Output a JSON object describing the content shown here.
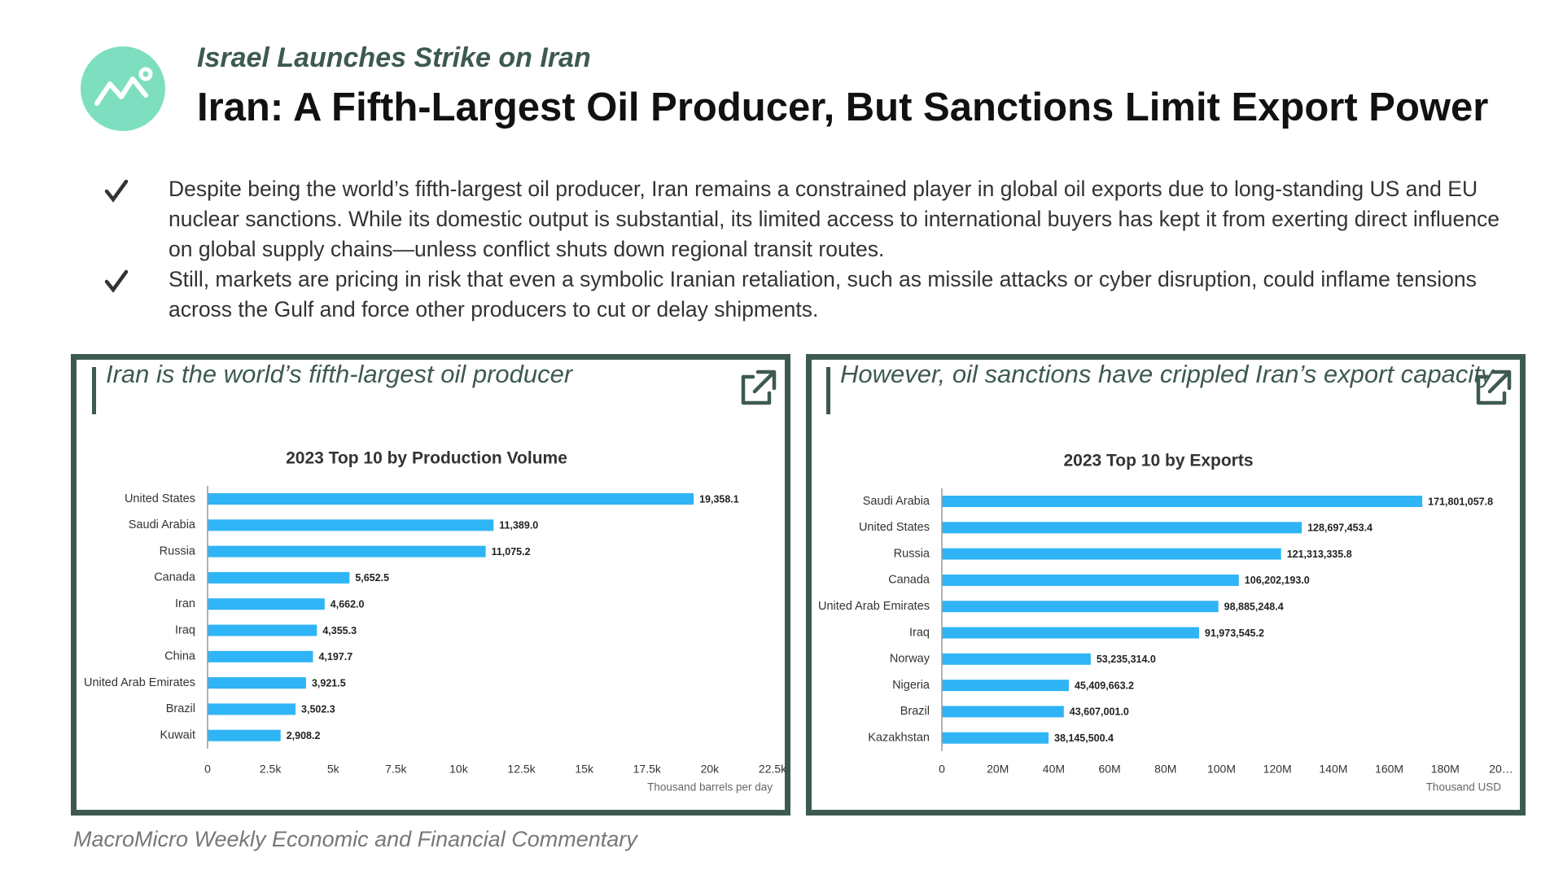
{
  "header": {
    "kicker": "Israel Launches Strike on Iran",
    "title": "Iran: A Fifth-Largest Oil Producer, But Sanctions Limit Export Power"
  },
  "bullets": [
    "Despite being the world’s fifth-largest oil producer, Iran remains a constrained player in global oil exports due to long-standing US and EU nuclear sanctions. While its domestic output is substantial, its limited access to international buyers has kept it from exerting direct influence on global supply chains—unless conflict shuts down regional transit routes.",
    "Still, markets are pricing in risk that even a symbolic Iranian retaliation, such as missile attacks or cyber disruption, could inflame tensions across the Gulf and force other producers to cut or delay shipments."
  ],
  "chart_data": [
    {
      "type": "bar",
      "orientation": "horizontal",
      "caption": "Iran is the world’s fifth-largest oil producer",
      "title": "2023 Top 10 by Production Volume",
      "categories": [
        "United States",
        "Saudi Arabia",
        "Russia",
        "Canada",
        "Iran",
        "Iraq",
        "China",
        "United Arab Emirates",
        "Brazil",
        "Kuwait"
      ],
      "values": [
        19358.1,
        11389.0,
        11075.2,
        5652.5,
        4662.0,
        4355.3,
        4197.7,
        3921.5,
        3502.3,
        2908.2
      ],
      "value_labels": [
        "19,358.1",
        "11,389.0",
        "11,075.2",
        "5,652.5",
        "4,662.0",
        "4,355.3",
        "4,197.7",
        "3,921.5",
        "3,502.3",
        "2,908.2"
      ],
      "color": "#2fb4f6",
      "xlim": [
        0,
        22500
      ],
      "xticks": [
        0,
        {
          "value": 2500,
          "label": "2.5k"
        },
        {
          "value": 5000,
          "label": "5k"
        },
        {
          "value": 7500,
          "label": "7.5k"
        },
        {
          "value": 10000,
          "label": "10k"
        },
        {
          "value": 12500,
          "label": "12.5k"
        },
        {
          "value": 15000,
          "label": "15k"
        },
        {
          "value": 17500,
          "label": "17.5k"
        },
        {
          "value": 20000,
          "label": "20k"
        },
        {
          "value": 22500,
          "label": "22.5k"
        }
      ],
      "xlabel": "Thousand barrels per day",
      "grid": false
    },
    {
      "type": "bar",
      "orientation": "horizontal",
      "caption": "However, oil sanctions have crippled Iran’s export capacity",
      "title": "2023 Top 10 by Exports",
      "categories": [
        "Saudi Arabia",
        "United States",
        "Russia",
        "Canada",
        "United Arab Emirates",
        "Iraq",
        "Norway",
        "Nigeria",
        "Brazil",
        "Kazakhstan"
      ],
      "values": [
        171801057.8,
        128697453.4,
        121313335.8,
        106202193.0,
        98885248.4,
        91973545.2,
        53235314.0,
        45409663.2,
        43607001.0,
        38145500.4
      ],
      "value_labels": [
        "171,801,057.8",
        "128,697,453.4",
        "121,313,335.8",
        "106,202,193.0",
        "98,885,248.4",
        "91,973,545.2",
        "53,235,314.0",
        "45,409,663.2",
        "43,607,001.0",
        "38,145,500.4"
      ],
      "color": "#2fb4f6",
      "xlim": [
        0,
        200000000
      ],
      "xticks": [
        0,
        {
          "value": 20000000,
          "label": "20M"
        },
        {
          "value": 40000000,
          "label": "40M"
        },
        {
          "value": 60000000,
          "label": "60M"
        },
        {
          "value": 80000000,
          "label": "80M"
        },
        {
          "value": 100000000,
          "label": "100M"
        },
        {
          "value": 120000000,
          "label": "120M"
        },
        {
          "value": 140000000,
          "label": "140M"
        },
        {
          "value": 160000000,
          "label": "160M"
        },
        {
          "value": 180000000,
          "label": "180M"
        },
        {
          "value": 200000000,
          "label": "20…"
        }
      ],
      "xlabel": "Thousand USD",
      "grid": false
    }
  ],
  "footer": "MacroMicro Weekly Economic and Financial Commentary"
}
